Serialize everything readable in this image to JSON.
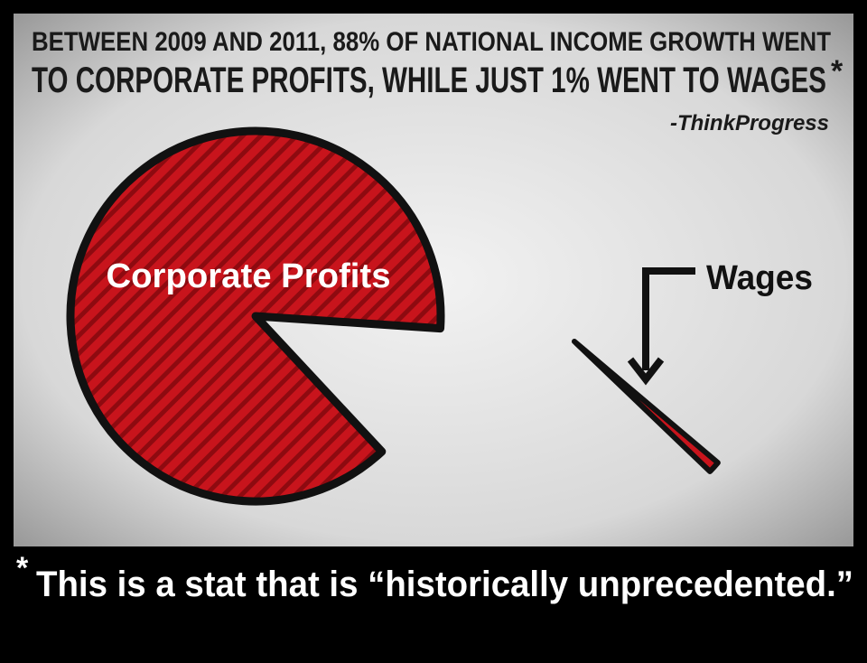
{
  "chart_data": {
    "type": "pie",
    "title": [
      "BETWEEN 2009 AND 2011, 88% OF NATIONAL INCOME GROWTH WENT",
      "TO CORPORATE PROFITS, WHILE JUST 1% WENT TO WAGES"
    ],
    "title_marker": "*",
    "source": "-ThinkProgress",
    "categories": [
      "Corporate Profits",
      "Wages"
    ],
    "values": [
      88,
      1
    ],
    "color": "#c8141c",
    "footnote": {
      "marker": "*",
      "text": "This is a stat that is “historically unprecedented.”"
    }
  }
}
